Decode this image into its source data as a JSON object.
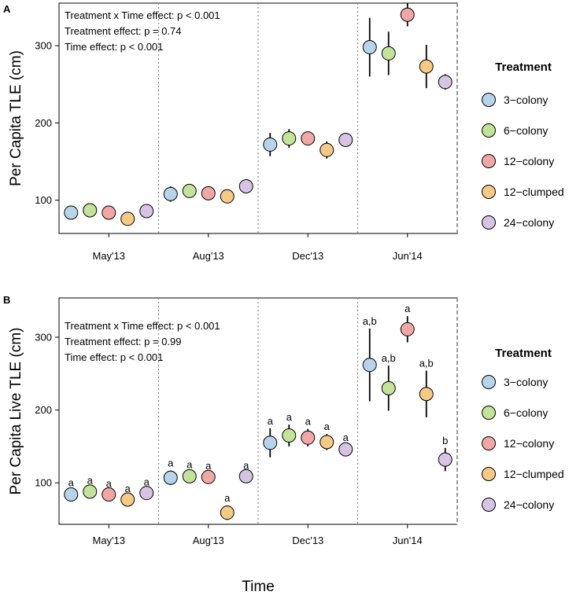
{
  "chart_data": [
    {
      "panel_label": "A",
      "type": "scatter",
      "ylabel": "Per Capita TLE (cm)",
      "xlabel": "",
      "categories": [
        "May'13",
        "Aug'13",
        "Dec'13",
        "Jun'14"
      ],
      "yticks": [
        100,
        200,
        300
      ],
      "ylim": [
        57,
        355
      ],
      "annotations": [
        "Treatment x Time effect: p < 0.001",
        "Treatment effect: p = 0.74",
        "Time effect: p < 0.001"
      ],
      "legend_title": "Treatment",
      "series": [
        {
          "name": "3−colony",
          "color": "#b8d4ea",
          "values": [
            84,
            108,
            172,
            298
          ],
          "errors": [
            8,
            10,
            15,
            38
          ]
        },
        {
          "name": "6−colony",
          "color": "#c3e39a",
          "values": [
            87,
            112,
            180,
            290
          ],
          "errors": [
            6,
            8,
            12,
            28
          ]
        },
        {
          "name": "12−colony",
          "color": "#f2a7a7",
          "values": [
            84,
            109,
            180,
            340
          ],
          "errors": [
            5,
            6,
            9,
            15
          ]
        },
        {
          "name": "12−clumped",
          "color": "#f5c986",
          "values": [
            76,
            105,
            165,
            273
          ],
          "errors": [
            5,
            6,
            11,
            28
          ]
        },
        {
          "name": "24−colony",
          "color": "#d6c4e2",
          "values": [
            86,
            118,
            178,
            253
          ],
          "errors": [
            5,
            6,
            8,
            10
          ]
        }
      ]
    },
    {
      "panel_label": "B",
      "type": "scatter",
      "ylabel": "Per Capita Live TLE (cm)",
      "xlabel": "Time",
      "categories": [
        "May'13",
        "Aug'13",
        "Dec'13",
        "Jun'14"
      ],
      "yticks": [
        100,
        200,
        300
      ],
      "ylim": [
        43,
        354
      ],
      "annotations": [
        "Treatment x Time effect: p < 0.001",
        "Treatment effect: p = 0.99",
        "Time effect: p < 0.001"
      ],
      "legend_title": "Treatment",
      "series": [
        {
          "name": "3−colony",
          "color": "#b8d4ea",
          "values": [
            84,
            107,
            155,
            262
          ],
          "errors": [
            6,
            10,
            20,
            50
          ],
          "labels": [
            "a",
            "a",
            "a",
            "a,b"
          ]
        },
        {
          "name": "6−colony",
          "color": "#c3e39a",
          "values": [
            88,
            109,
            165,
            230
          ],
          "errors": [
            5,
            6,
            15,
            31
          ],
          "labels": [
            "a",
            "a",
            "a",
            "a,b"
          ]
        },
        {
          "name": "12−colony",
          "color": "#f2a7a7",
          "values": [
            84,
            108,
            162,
            311
          ],
          "errors": [
            5,
            5,
            12,
            18
          ],
          "labels": [
            "a",
            "a",
            "a",
            "a"
          ]
        },
        {
          "name": "12−clumped",
          "color": "#f5c986",
          "values": [
            77,
            59,
            156,
            222
          ],
          "errors": [
            5,
            10,
            11,
            32
          ],
          "labels": [
            "a",
            "a",
            "a",
            "a,b"
          ]
        },
        {
          "name": "24−colony",
          "color": "#d6c4e2",
          "values": [
            86,
            109,
            146,
            132
          ],
          "errors": [
            5,
            5,
            6,
            16
          ],
          "labels": [
            "a",
            "a",
            "a",
            "b"
          ]
        }
      ]
    }
  ]
}
